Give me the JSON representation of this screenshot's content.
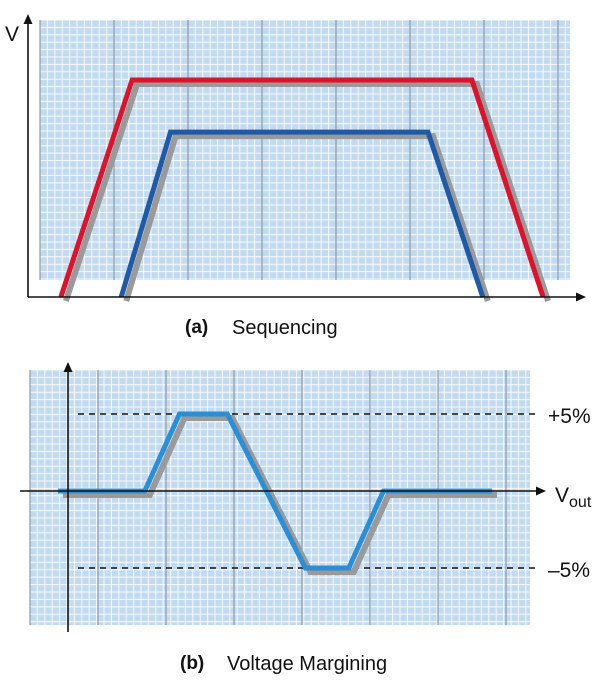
{
  "chart_data": [
    {
      "type": "line",
      "panel_label": "(a)",
      "title": "Sequencing",
      "ylabel": "V",
      "xlabel": "",
      "grid": true,
      "x_range": [
        0,
        100
      ],
      "y_range": [
        0,
        100
      ],
      "series": [
        {
          "color": "#e0112b",
          "points": [
            [
              6,
              0
            ],
            [
              19,
              100
            ],
            [
              81,
              100
            ],
            [
              94,
              0
            ]
          ]
        },
        {
          "color": "#1e5aa8",
          "points": [
            [
              17,
              0
            ],
            [
              26,
              76
            ],
            [
              73,
              76
            ],
            [
              83,
              0
            ]
          ]
        }
      ]
    },
    {
      "type": "line",
      "panel_label": "(b)",
      "title": "Voltage Margining",
      "ylabel": "",
      "xlabel": "",
      "grid": true,
      "x_range": [
        0,
        100
      ],
      "y_range": [
        -8,
        8
      ],
      "reference_lines": [
        {
          "label": "+5%",
          "y": 5
        },
        {
          "label": "-5%",
          "y": -5
        }
      ],
      "center_label": {
        "main": "V",
        "sub": "out"
      },
      "series": [
        {
          "color": "#2a8fd6",
          "points": [
            [
              0,
              0
            ],
            [
              20,
              0
            ],
            [
              28,
              5
            ],
            [
              39,
              5
            ],
            [
              57,
              -5
            ],
            [
              67,
              -5
            ],
            [
              75,
              0
            ],
            [
              100,
              0
            ]
          ]
        }
      ]
    }
  ],
  "labels": {
    "a_tag": "(a)",
    "a_text": "Sequencing",
    "b_tag": "(b)",
    "b_text": "Voltage Margining",
    "v_axis": "V",
    "plus5": "+5%",
    "minus5": "–5%",
    "vout_main": "V",
    "vout_sub": "out"
  }
}
